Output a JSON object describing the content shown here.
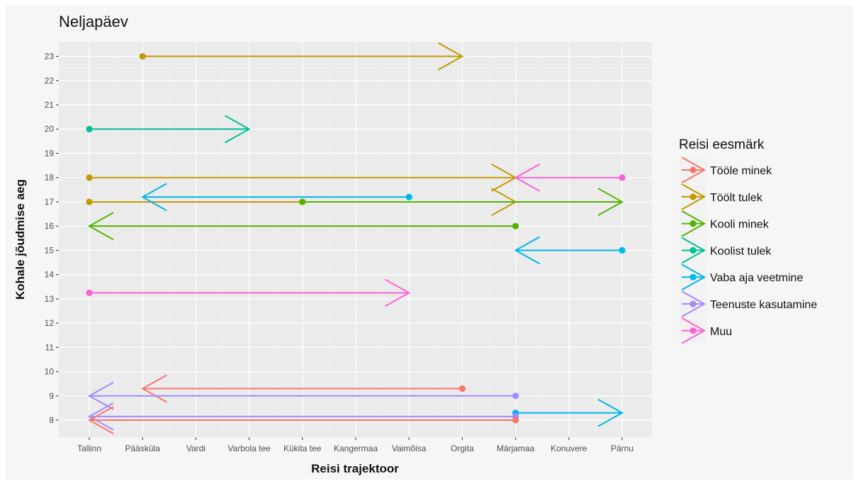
{
  "chart_data": {
    "type": "line",
    "title": "Neljapäev",
    "xlabel": "Reisi trajektoor",
    "ylabel": "Kohale jõudmise aeg",
    "x_categories": [
      "Tallinn",
      "Pääsküla",
      "Vardi",
      "Varbola tee",
      "Kükita tee",
      "Kangermaa",
      "Vaimõisa",
      "Orgita",
      "Märjamaa",
      "Konuvere",
      "Pärnu"
    ],
    "y_ticks": [
      8,
      9,
      10,
      11,
      12,
      13,
      14,
      15,
      16,
      17,
      18,
      19,
      20,
      21,
      22,
      23
    ],
    "ylim": [
      7.3,
      23.6
    ],
    "grid": true,
    "legend_position": "right",
    "legend": {
      "title": "Reisi eesmärk",
      "items": [
        {
          "key": "toole",
          "label": "Tööle minek",
          "color": "#F8766D"
        },
        {
          "key": "toolt",
          "label": "Töölt tulek",
          "color": "#C49A00"
        },
        {
          "key": "kooli",
          "label": "Kooli minek",
          "color": "#53B400"
        },
        {
          "key": "koolist",
          "label": "Koolist tulek",
          "color": "#00C094"
        },
        {
          "key": "vaba",
          "label": "Vaba aja veetmine",
          "color": "#00B6EB"
        },
        {
          "key": "teenuste",
          "label": "Teenuste kasutamine",
          "color": "#A58AFF"
        },
        {
          "key": "muu",
          "label": "Muu",
          "color": "#FB61D7"
        }
      ]
    },
    "series": [
      {
        "purpose": "toolt",
        "from": "Pääsküla",
        "to": "Orgita",
        "y": 23
      },
      {
        "purpose": "koolist",
        "from": "Tallinn",
        "to": "Varbola tee",
        "y": 20
      },
      {
        "purpose": "toolt",
        "from": "Tallinn",
        "to": "Märjamaa",
        "y": 18
      },
      {
        "purpose": "muu",
        "from": "Pärnu",
        "to": "Märjamaa",
        "y": 18
      },
      {
        "purpose": "toolt",
        "from": "Tallinn",
        "to": "Märjamaa",
        "y": 17
      },
      {
        "purpose": "kooli",
        "from": "Kükita tee",
        "to": "Pärnu",
        "y": 17
      },
      {
        "purpose": "vaba",
        "from": "Vaimõisa",
        "to": "Pääsküla",
        "y": 17.2
      },
      {
        "purpose": "kooli",
        "from": "Märjamaa",
        "to": "Tallinn",
        "y": 16
      },
      {
        "purpose": "vaba",
        "from": "Pärnu",
        "to": "Märjamaa",
        "y": 15
      },
      {
        "purpose": "muu",
        "from": "Tallinn",
        "to": "Vaimõisa",
        "y": 13.25
      },
      {
        "purpose": "toole",
        "from": "Orgita",
        "to": "Pääsküla",
        "y": 9.3
      },
      {
        "purpose": "teenuste",
        "from": "Märjamaa",
        "to": "Tallinn",
        "y": 9
      },
      {
        "purpose": "vaba",
        "from": "Märjamaa",
        "to": "Pärnu",
        "y": 8.3
      },
      {
        "purpose": "teenuste",
        "from": "Märjamaa",
        "to": "Tallinn",
        "y": 8.15
      },
      {
        "purpose": "toole",
        "from": "Märjamaa",
        "to": "Tallinn",
        "y": 8
      }
    ]
  }
}
